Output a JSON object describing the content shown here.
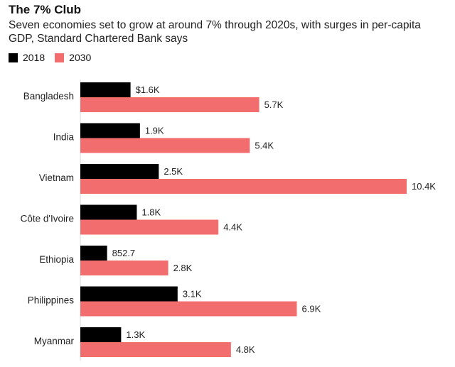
{
  "chart_data": {
    "type": "bar",
    "orientation": "horizontal",
    "title": "The 7% Club",
    "subtitle": "Seven economies set to grow at around 7% through 2020s, with surges in per-capita GDP, Standard Chartered Bank says",
    "categories": [
      "Bangladesh",
      "India",
      "Vietnam",
      "Côte d'Ivoire",
      "Ethiopia",
      "Philippines",
      "Myanmar"
    ],
    "series": [
      {
        "name": "2018",
        "color": "#000000",
        "values": [
          1600,
          1900,
          2500,
          1800,
          852.7,
          3100,
          1300
        ],
        "labels": [
          "$1.6K",
          "1.9K",
          "2.5K",
          "1.8K",
          "852.7",
          "3.1K",
          "1.3K"
        ]
      },
      {
        "name": "2030",
        "color": "#f26d6d",
        "values": [
          5700,
          5400,
          10400,
          4400,
          2800,
          6900,
          4800
        ],
        "labels": [
          "5.7K",
          "5.4K",
          "10.4K",
          "4.4K",
          "2.8K",
          "6.9K",
          "4.8K"
        ]
      }
    ],
    "legend_position": "top-left",
    "grid": false
  }
}
